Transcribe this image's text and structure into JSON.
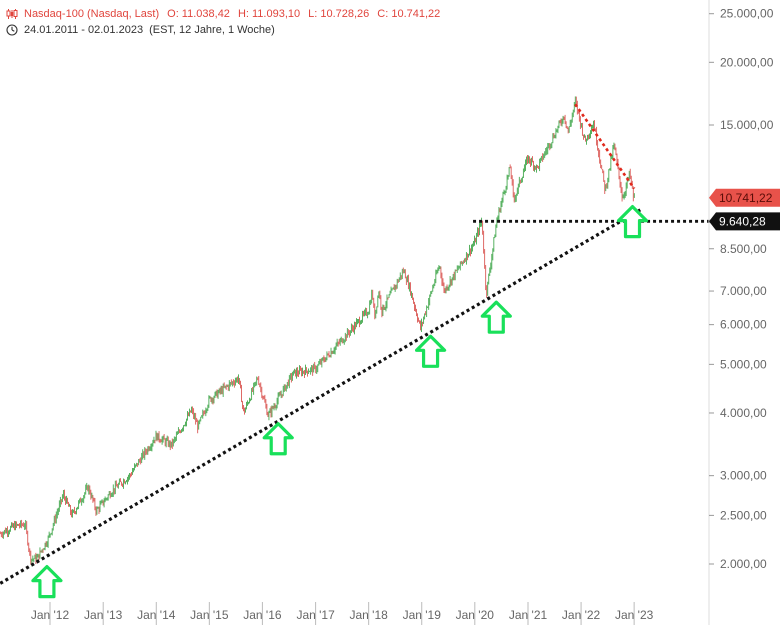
{
  "header": {
    "title": "Nasdaq-100 (Nasdaq, Last)",
    "open": "O: 11.038,42",
    "high": "H: 11.093,10",
    "low": "L: 10.728,26",
    "close": "C: 10.741,22",
    "range": "24.01.2011 - 02.01.2023",
    "interval": "(EST, 12 Jahre, 1 Woche)",
    "chart_icon": "candlestick-icon",
    "time_icon": "clock-icon"
  },
  "colors": {
    "up": "#2e9e3a",
    "down": "#d64541",
    "last_badge": "#e8524a",
    "support_badge": "#111111",
    "arrow": "#19e05a",
    "support_line": "#111111",
    "resistance_line": "#e0291c"
  },
  "chart_data": {
    "type": "candlestick",
    "title": "Nasdaq-100 (Nasdaq, Last)",
    "y_scale": "log",
    "ylim": [
      1500,
      27000
    ],
    "y_ticks": [
      2000,
      2500,
      3000,
      4000,
      5000,
      6000,
      7000,
      8500,
      15000,
      20000,
      25000
    ],
    "y_tick_labels": [
      "2.000,00",
      "2.500,00",
      "3.000,00",
      "4.000,00",
      "5.000,00",
      "6.000,00",
      "7.000,00",
      "8.500,00",
      "15.000,00",
      "20.000,00",
      "25.000,00"
    ],
    "x_range": [
      "2011-01-24",
      "2023-01-02"
    ],
    "x_ticks": [
      "2012-01-01",
      "2013-01-01",
      "2014-01-01",
      "2015-01-01",
      "2016-01-01",
      "2017-01-01",
      "2018-01-01",
      "2019-01-01",
      "2020-01-01",
      "2021-01-01",
      "2022-01-01",
      "2023-01-01"
    ],
    "x_tick_labels": [
      "Jan '12",
      "Jan '13",
      "Jan '14",
      "Jan '15",
      "Jan '16",
      "Jan '17",
      "Jan '18",
      "Jan '19",
      "Jan '20",
      "Jan '21",
      "Jan '22",
      "Jan '23"
    ],
    "price_path": [
      [
        "2011-01-24",
        2300
      ],
      [
        "2011-05-01",
        2380
      ],
      [
        "2011-07-15",
        2400
      ],
      [
        "2011-08-20",
        2050
      ],
      [
        "2011-10-03",
        2050
      ],
      [
        "2011-12-20",
        2250
      ],
      [
        "2012-04-01",
        2750
      ],
      [
        "2012-06-01",
        2500
      ],
      [
        "2012-09-20",
        2850
      ],
      [
        "2012-11-15",
        2550
      ],
      [
        "2013-03-01",
        2800
      ],
      [
        "2013-07-01",
        3000
      ],
      [
        "2013-12-31",
        3600
      ],
      [
        "2014-04-15",
        3450
      ],
      [
        "2014-09-01",
        4050
      ],
      [
        "2014-10-15",
        3750
      ],
      [
        "2014-12-31",
        4250
      ],
      [
        "2015-07-20",
        4700
      ],
      [
        "2015-08-25",
        4000
      ],
      [
        "2015-12-01",
        4700
      ],
      [
        "2016-02-10",
        3950
      ],
      [
        "2016-08-01",
        4800
      ],
      [
        "2016-12-31",
        4900
      ],
      [
        "2017-12-31",
        6400
      ],
      [
        "2018-01-26",
        7000
      ],
      [
        "2018-02-09",
        6200
      ],
      [
        "2018-03-12",
        7000
      ],
      [
        "2018-04-02",
        6400
      ],
      [
        "2018-08-29",
        7700
      ],
      [
        "2018-10-10",
        7100
      ],
      [
        "2018-12-24",
        5900
      ],
      [
        "2019-05-03",
        7900
      ],
      [
        "2019-06-03",
        7000
      ],
      [
        "2019-12-31",
        8750
      ],
      [
        "2020-02-19",
        9700
      ],
      [
        "2020-03-20",
        6900
      ],
      [
        "2020-06-01",
        9700
      ],
      [
        "2020-09-02",
        12400
      ],
      [
        "2020-09-23",
        10600
      ],
      [
        "2020-12-31",
        12900
      ],
      [
        "2021-03-05",
        12300
      ],
      [
        "2021-09-07",
        15700
      ],
      [
        "2021-10-04",
        14500
      ],
      [
        "2021-11-22",
        16700
      ],
      [
        "2022-01-28",
        13900
      ],
      [
        "2022-03-29",
        15200
      ],
      [
        "2022-06-16",
        11100
      ],
      [
        "2022-08-16",
        13700
      ],
      [
        "2022-10-13",
        10700
      ],
      [
        "2022-12-01",
        12000
      ],
      [
        "2022-12-28",
        10700
      ],
      [
        "2023-01-02",
        10741.22
      ]
    ],
    "support_trendline": {
      "from": [
        "2011-01-24",
        1830
      ],
      "to": [
        "2023-01-02",
        10000
      ],
      "end": "2023-02-20"
    },
    "resistance_trendline": {
      "from": [
        "2021-11-22",
        16500
      ],
      "to": [
        "2023-01-02",
        11200
      ]
    },
    "horizontal_support": {
      "value": 9640.28,
      "from": "2019-12-20"
    },
    "price_labels": [
      {
        "text": "10.741,22",
        "value": 10741.22,
        "kind": "last"
      },
      {
        "text": "9.640,28",
        "value": 9640.28,
        "kind": "support"
      }
    ],
    "up_arrows": [
      {
        "date": "2011-10-03",
        "value": 2050
      },
      {
        "date": "2016-02-10",
        "value": 3950
      },
      {
        "date": "2018-12-24",
        "value": 5900
      },
      {
        "date": "2020-03-20",
        "value": 6900
      },
      {
        "date": "2022-10-13",
        "value": 10700
      }
    ]
  }
}
